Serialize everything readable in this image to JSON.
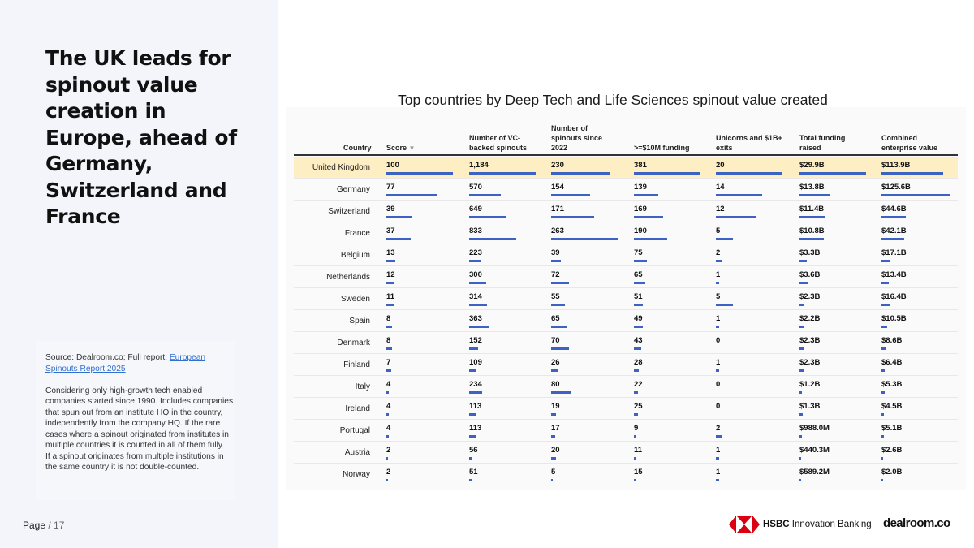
{
  "headline": "The UK leads for spinout value creation in Europe, ahead of Germany, Switzerland and France",
  "notes": {
    "source_prefix": "Source: Dealroom.co; Full report: ",
    "source_link": "European Spinouts Report 2025",
    "para1": "Considering only high-growth tech enabled companies started since 1990. Includes companies that spun out from an institute HQ in the country, independently from the company HQ. If the rare cases where a spinout originated from institutes in multiple countries it is counted in all of them fully.",
    "para2": "If a spinout originates from multiple institutions in the same country it is not double-counted."
  },
  "page": {
    "label": "Page",
    "sep": " / ",
    "number": "17"
  },
  "chart_title": "Top countries by Deep Tech and Life Sciences spinout value created",
  "columns": {
    "country": "Country",
    "score": "Score",
    "vc_backed_1": "Number of VC-",
    "vc_backed_2": "backed spinouts",
    "since_1": "Number of",
    "since_2": "spinouts since",
    "since_3": "2022",
    "funding10": ">=$10M funding",
    "unicorns_1": "Unicorns and $1B+",
    "unicorns_2": "exits",
    "total_1": "Total funding",
    "total_2": "raised",
    "ev_1": "Combined",
    "ev_2": "enterprise value"
  },
  "chart_data": {
    "type": "table",
    "title": "Top countries by Deep Tech and Life Sciences spinout value created",
    "highlight_row": "United Kingdom",
    "rows": [
      {
        "country": "United Kingdom",
        "score": 100,
        "vc": 1184,
        "vc_l": "1,184",
        "since": 230,
        "f10": 381,
        "uni": 20,
        "tot": 29.9,
        "tot_l": "$29.9B",
        "ev": 113.9,
        "ev_l": "$113.9B"
      },
      {
        "country": "Germany",
        "score": 77,
        "vc": 570,
        "vc_l": "570",
        "since": 154,
        "f10": 139,
        "uni": 14,
        "tot": 13.8,
        "tot_l": "$13.8B",
        "ev": 125.6,
        "ev_l": "$125.6B"
      },
      {
        "country": "Switzerland",
        "score": 39,
        "vc": 649,
        "vc_l": "649",
        "since": 171,
        "f10": 169,
        "uni": 12,
        "tot": 11.4,
        "tot_l": "$11.4B",
        "ev": 44.6,
        "ev_l": "$44.6B"
      },
      {
        "country": "France",
        "score": 37,
        "vc": 833,
        "vc_l": "833",
        "since": 263,
        "f10": 190,
        "uni": 5,
        "tot": 10.8,
        "tot_l": "$10.8B",
        "ev": 42.1,
        "ev_l": "$42.1B"
      },
      {
        "country": "Belgium",
        "score": 13,
        "vc": 223,
        "vc_l": "223",
        "since": 39,
        "f10": 75,
        "uni": 2,
        "tot": 3.3,
        "tot_l": "$3.3B",
        "ev": 17.1,
        "ev_l": "$17.1B"
      },
      {
        "country": "Netherlands",
        "score": 12,
        "vc": 300,
        "vc_l": "300",
        "since": 72,
        "f10": 65,
        "uni": 1,
        "tot": 3.6,
        "tot_l": "$3.6B",
        "ev": 13.4,
        "ev_l": "$13.4B"
      },
      {
        "country": "Sweden",
        "score": 11,
        "vc": 314,
        "vc_l": "314",
        "since": 55,
        "f10": 51,
        "uni": 5,
        "tot": 2.3,
        "tot_l": "$2.3B",
        "ev": 16.4,
        "ev_l": "$16.4B"
      },
      {
        "country": "Spain",
        "score": 8,
        "vc": 363,
        "vc_l": "363",
        "since": 65,
        "f10": 49,
        "uni": 1,
        "tot": 2.2,
        "tot_l": "$2.2B",
        "ev": 10.5,
        "ev_l": "$10.5B"
      },
      {
        "country": "Denmark",
        "score": 8,
        "vc": 152,
        "vc_l": "152",
        "since": 70,
        "f10": 43,
        "uni": 0,
        "tot": 2.3,
        "tot_l": "$2.3B",
        "ev": 8.6,
        "ev_l": "$8.6B"
      },
      {
        "country": "Finland",
        "score": 7,
        "vc": 109,
        "vc_l": "109",
        "since": 26,
        "f10": 28,
        "uni": 1,
        "tot": 2.3,
        "tot_l": "$2.3B",
        "ev": 6.4,
        "ev_l": "$6.4B"
      },
      {
        "country": "Italy",
        "score": 4,
        "vc": 234,
        "vc_l": "234",
        "since": 80,
        "f10": 22,
        "uni": 0,
        "tot": 1.2,
        "tot_l": "$1.2B",
        "ev": 5.3,
        "ev_l": "$5.3B"
      },
      {
        "country": "Ireland",
        "score": 4,
        "vc": 113,
        "vc_l": "113",
        "since": 19,
        "f10": 25,
        "uni": 0,
        "tot": 1.3,
        "tot_l": "$1.3B",
        "ev": 4.5,
        "ev_l": "$4.5B"
      },
      {
        "country": "Portugal",
        "score": 4,
        "vc": 113,
        "vc_l": "113",
        "since": 17,
        "f10": 9,
        "uni": 2,
        "tot": 0.988,
        "tot_l": "$988.0M",
        "ev": 5.1,
        "ev_l": "$5.1B"
      },
      {
        "country": "Austria",
        "score": 2,
        "vc": 56,
        "vc_l": "56",
        "since": 20,
        "f10": 11,
        "uni": 1,
        "tot": 0.4403,
        "tot_l": "$440.3M",
        "ev": 2.6,
        "ev_l": "$2.6B"
      },
      {
        "country": "Norway",
        "score": 2,
        "vc": 51,
        "vc_l": "51",
        "since": 5,
        "f10": 15,
        "uni": 1,
        "tot": 0.5892,
        "tot_l": "$589.2M",
        "ev": 2.0,
        "ev_l": "$2.0B"
      }
    ]
  },
  "logos": {
    "hsbc_bold": "HSBC",
    "hsbc_rest": " Innovation Banking",
    "dealroom": "dealroom.co",
    "hsbc_red": "#db0011"
  },
  "colors": {
    "bar": "#3c62c4",
    "highlight": "#fdeec4"
  }
}
